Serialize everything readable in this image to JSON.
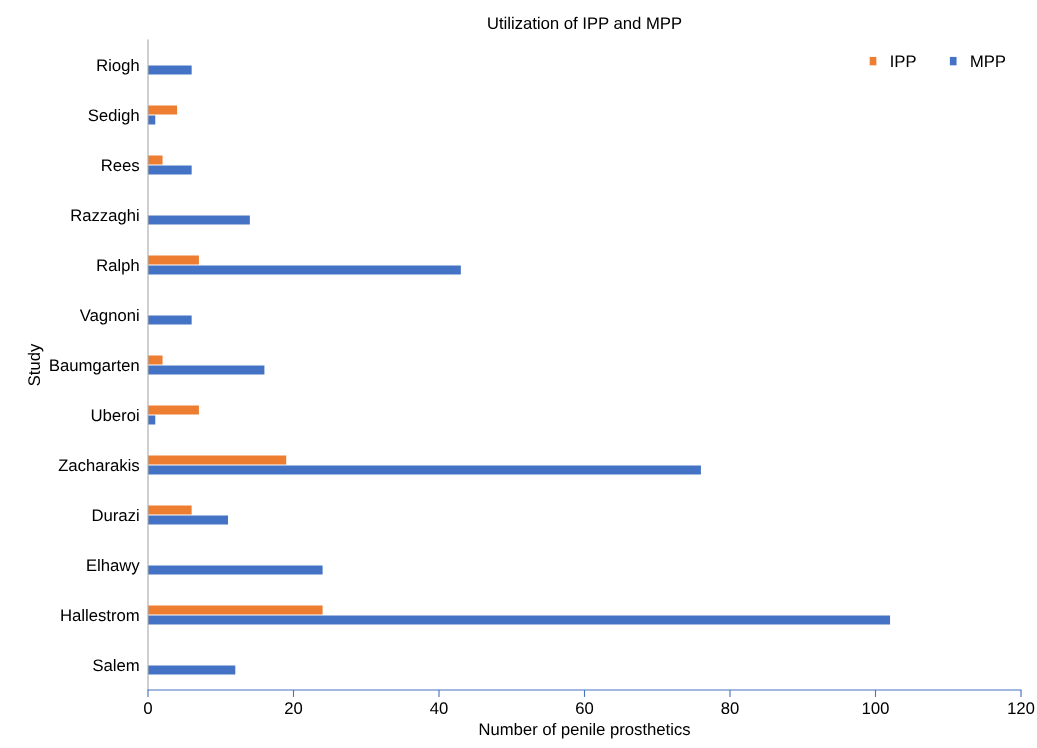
{
  "chart_data": {
    "type": "bar",
    "orientation": "horizontal",
    "title": "Utilization of IPP and MPP",
    "xlabel": "Number of penile prosthetics",
    "ylabel": "Study",
    "categories": [
      "Riogh",
      "Sedigh",
      "Rees",
      "Razzaghi",
      "Ralph",
      "Vagnoni",
      "Baumgarten",
      "Uberoi",
      "Zacharakis",
      "Durazi",
      "Elhawy",
      "Hallestrom",
      "Salem"
    ],
    "series": [
      {
        "name": "IPP",
        "color": "#ed7d31",
        "values": [
          0,
          4,
          2,
          0,
          7,
          0,
          2,
          7,
          19,
          6,
          0,
          24,
          0
        ]
      },
      {
        "name": "MPP",
        "color": "#4472c4",
        "values": [
          6,
          1,
          6,
          14,
          43,
          6,
          16,
          1,
          76,
          11,
          24,
          102,
          12
        ]
      }
    ],
    "xlim": [
      0,
      120
    ],
    "xticks": [
      0,
      20,
      40,
      60,
      80,
      100,
      120
    ],
    "grid": false,
    "legend": "top right"
  }
}
